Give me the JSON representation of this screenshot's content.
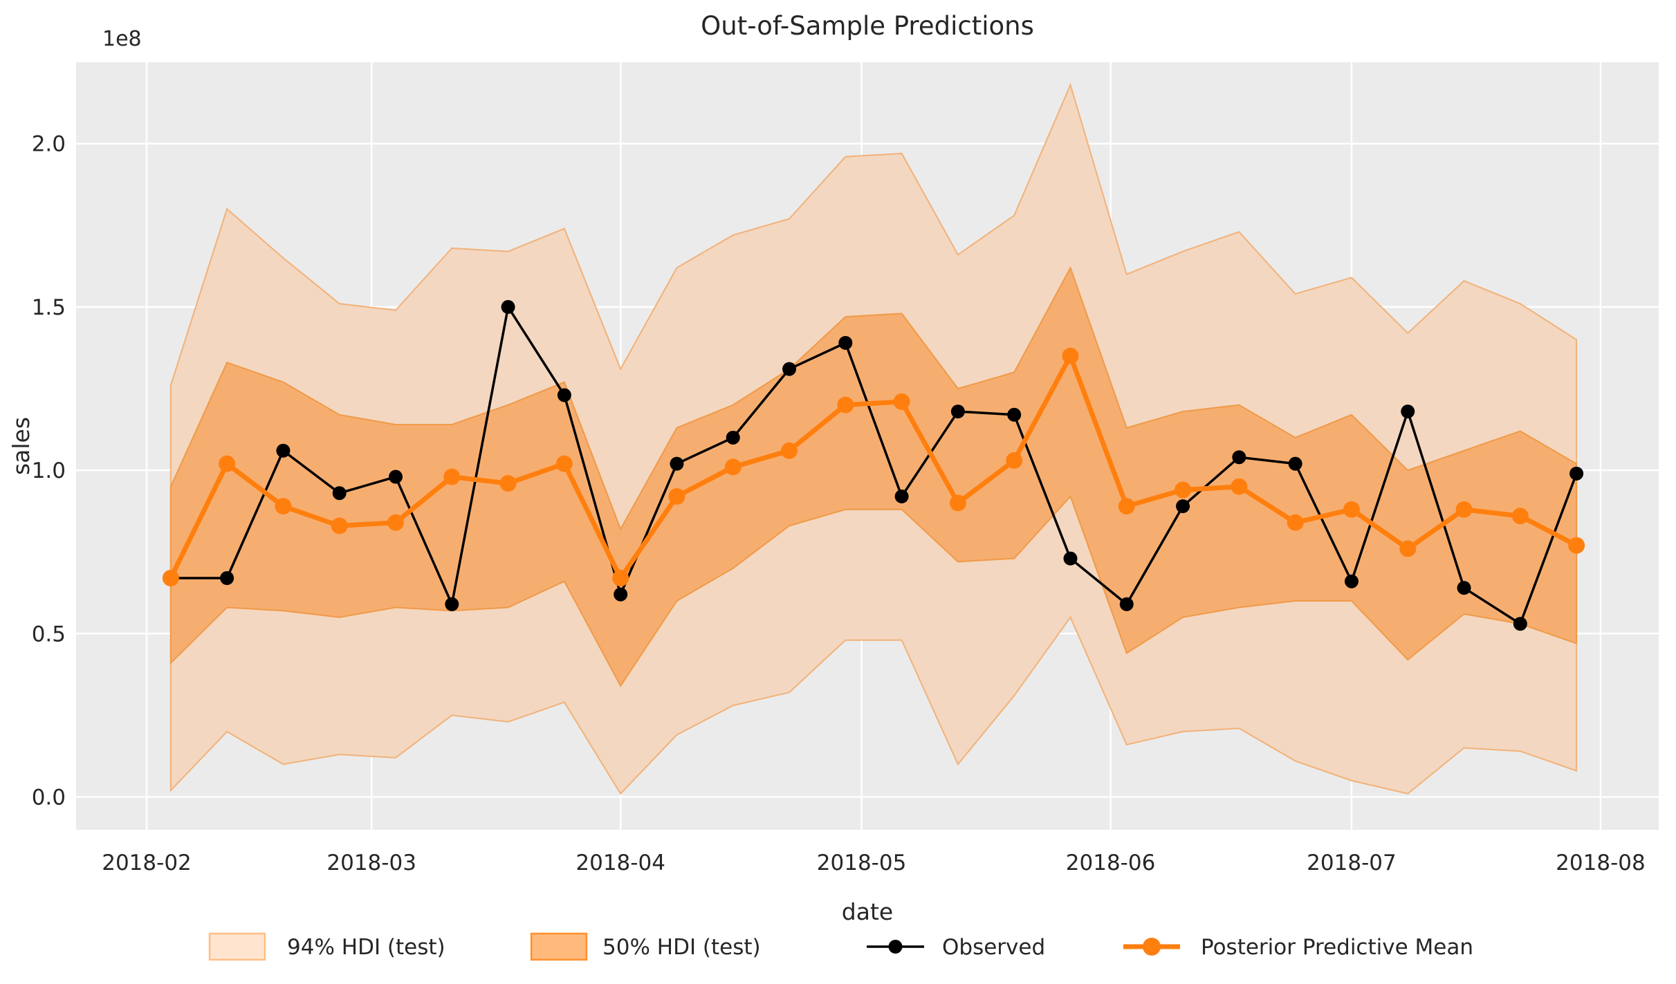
{
  "title": "Out-of-Sample Predictions",
  "axes": {
    "xlabel": "date",
    "ylabel": "sales",
    "offset_text": "1e8",
    "x_tick_labels": [
      "2018-02",
      "2018-03",
      "2018-04",
      "2018-05",
      "2018-06",
      "2018-07",
      "2018-08"
    ],
    "x_tick_dates": [
      "2018-02-01",
      "2018-03-01",
      "2018-04-01",
      "2018-05-01",
      "2018-06-01",
      "2018-07-01",
      "2018-08-01"
    ],
    "y_tick_labels": [
      "0.0",
      "0.5",
      "1.0",
      "1.5",
      "2.0"
    ],
    "y_tick_values": [
      0.0,
      0.5,
      1.0,
      1.5,
      2.0
    ]
  },
  "legend": [
    {
      "label": "94% HDI (test)",
      "type": "patch",
      "fill_opacity": 0.2
    },
    {
      "label": "50% HDI (test)",
      "type": "patch",
      "fill_opacity": 0.55
    },
    {
      "label": "Observed",
      "type": "line",
      "color": "#000000"
    },
    {
      "label": "Posterior Predictive Mean",
      "type": "line",
      "color": "#ff7f0e"
    }
  ],
  "colors": {
    "accent": "#ff7f0e",
    "observed": "#000000",
    "axes_bg": "#ebebeb",
    "grid": "#ffffff",
    "hdi94_fill": "#f3d7c0",
    "hdi50_fill": "#f6ae70",
    "hdi94_edge": "#f2a968",
    "hdi50_edge": "#ef933b",
    "text": "#262626"
  },
  "chart_data": {
    "type": "line",
    "title": "Out-of-Sample Predictions",
    "xlabel": "date",
    "ylabel": "sales",
    "y_units_multiplier": "1e8",
    "grid": true,
    "legend_position": "bottom",
    "ylim": [
      -0.1,
      2.25
    ],
    "x": [
      "2018-02-04",
      "2018-02-11",
      "2018-02-18",
      "2018-02-25",
      "2018-03-04",
      "2018-03-11",
      "2018-03-18",
      "2018-03-25",
      "2018-04-01",
      "2018-04-08",
      "2018-04-15",
      "2018-04-22",
      "2018-04-29",
      "2018-05-06",
      "2018-05-13",
      "2018-05-20",
      "2018-05-27",
      "2018-06-03",
      "2018-06-10",
      "2018-06-17",
      "2018-06-24",
      "2018-07-01",
      "2018-07-08",
      "2018-07-15",
      "2018-07-22",
      "2018-07-29"
    ],
    "series": [
      {
        "name": "Observed",
        "color": "#000000",
        "values": [
          0.67,
          0.67,
          1.06,
          0.93,
          0.98,
          0.59,
          1.5,
          1.23,
          0.62,
          1.02,
          1.1,
          1.31,
          1.39,
          0.92,
          1.18,
          1.17,
          0.73,
          0.59,
          0.89,
          1.04,
          1.02,
          0.66,
          1.18,
          0.64,
          0.53,
          0.99
        ]
      },
      {
        "name": "Posterior Predictive Mean",
        "color": "#ff7f0e",
        "values": [
          0.67,
          1.02,
          0.89,
          0.83,
          0.84,
          0.98,
          0.96,
          1.02,
          0.67,
          0.92,
          1.01,
          1.06,
          1.2,
          1.21,
          0.9,
          1.03,
          1.35,
          0.89,
          0.94,
          0.95,
          0.84,
          0.88,
          0.76,
          0.88,
          0.86,
          0.77
        ]
      }
    ],
    "bands": [
      {
        "name": "94% HDI (test)",
        "lower": [
          0.02,
          0.2,
          0.1,
          0.13,
          0.12,
          0.25,
          0.23,
          0.29,
          0.01,
          0.19,
          0.28,
          0.32,
          0.48,
          0.48,
          0.1,
          0.31,
          0.55,
          0.16,
          0.2,
          0.21,
          0.11,
          0.05,
          0.01,
          0.15,
          0.14,
          0.08
        ],
        "upper": [
          1.26,
          1.8,
          1.65,
          1.51,
          1.49,
          1.68,
          1.67,
          1.74,
          1.31,
          1.62,
          1.72,
          1.77,
          1.96,
          1.97,
          1.66,
          1.78,
          2.18,
          1.6,
          1.67,
          1.73,
          1.54,
          1.59,
          1.42,
          1.58,
          1.51,
          1.4
        ]
      },
      {
        "name": "50% HDI (test)",
        "lower": [
          0.41,
          0.58,
          0.57,
          0.55,
          0.58,
          0.57,
          0.58,
          0.66,
          0.34,
          0.6,
          0.7,
          0.83,
          0.88,
          0.88,
          0.72,
          0.73,
          0.92,
          0.44,
          0.55,
          0.58,
          0.6,
          0.6,
          0.42,
          0.56,
          0.53,
          0.47
        ],
        "upper": [
          0.95,
          1.33,
          1.27,
          1.17,
          1.14,
          1.14,
          1.2,
          1.27,
          0.82,
          1.13,
          1.2,
          1.31,
          1.47,
          1.48,
          1.25,
          1.3,
          1.62,
          1.13,
          1.18,
          1.2,
          1.1,
          1.17,
          1.0,
          1.06,
          1.12,
          1.02
        ]
      }
    ]
  }
}
